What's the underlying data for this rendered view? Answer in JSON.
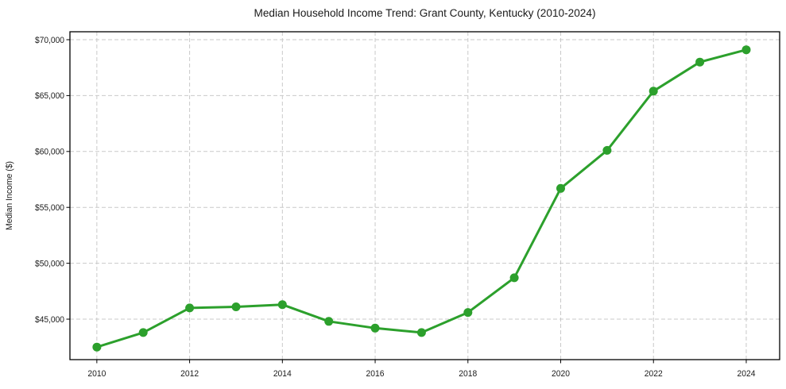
{
  "chart_data": {
    "type": "line",
    "title": "Median Household Income Trend: Grant County, Kentucky (2010-2024)",
    "xlabel": "",
    "ylabel": "Median Income ($)",
    "x": [
      2010,
      2011,
      2012,
      2013,
      2014,
      2015,
      2016,
      2017,
      2018,
      2019,
      2020,
      2021,
      2022,
      2023,
      2024
    ],
    "values": [
      42500,
      43800,
      46000,
      46100,
      46300,
      44800,
      44200,
      43800,
      45600,
      48700,
      56700,
      60100,
      65400,
      68000,
      69100
    ],
    "xlim": [
      2009.42,
      2024.72
    ],
    "ylim": [
      41380,
      70710
    ],
    "xticks": [
      2010,
      2012,
      2014,
      2016,
      2018,
      2020,
      2022,
      2024
    ],
    "xtick_labels": [
      "2010",
      "2012",
      "2014",
      "2016",
      "2018",
      "2020",
      "2022",
      "2024"
    ],
    "yticks": [
      45000,
      50000,
      55000,
      60000,
      65000,
      70000
    ],
    "ytick_labels": [
      "$45,000",
      "$50,000",
      "$55,000",
      "$60,000",
      "$65,000",
      "$70,000"
    ],
    "grid": true,
    "legend": "none",
    "style": {
      "line_color": "#2ca02c",
      "marker_color": "#2ca02c",
      "marker": "circle",
      "grid_color": "#c9c9c9",
      "spine_color": "#000000",
      "background": "#ffffff",
      "line_width": 3,
      "marker_radius": 5.5
    }
  }
}
